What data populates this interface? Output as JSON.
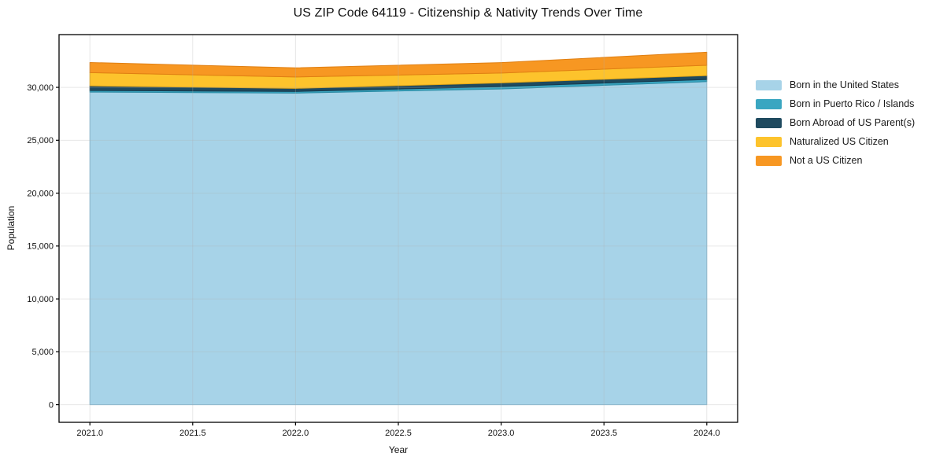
{
  "title": "US ZIP Code 64119 - Citizenship & Nativity Trends Over Time",
  "chart_data": {
    "type": "area",
    "stacked": true,
    "title": "US ZIP Code 64119 - Citizenship & Nativity Trends Over Time",
    "xlabel": "Year",
    "ylabel": "Population",
    "x": [
      2021,
      2022,
      2023,
      2024
    ],
    "series": [
      {
        "name": "Born in the United States",
        "color": "#A7D3E8",
        "edge": "#83BBD6",
        "values": [
          29550,
          29460,
          29850,
          30540
        ]
      },
      {
        "name": "Born in Puerto Rico / Islands",
        "color": "#3AA6C1",
        "edge": "#2B8BA4",
        "values": [
          150,
          150,
          225,
          200
        ]
      },
      {
        "name": "Born Abroad of US Parent(s)",
        "color": "#1F4A5F",
        "edge": "#16374A",
        "values": [
          440,
          295,
          345,
          370
        ]
      },
      {
        "name": "Naturalized US Citizen",
        "color": "#FDC32C",
        "edge": "#E5A817",
        "values": [
          1250,
          1075,
          930,
          980
        ]
      },
      {
        "name": "Not a US Citizen",
        "color": "#F79722",
        "edge": "#E07F12",
        "values": [
          960,
          865,
          990,
          1230
        ]
      }
    ],
    "totals": [
      32350,
      31845,
      32340,
      33320
    ],
    "xlim": [
      2020.85,
      2024.15
    ],
    "ylim": [
      -1666,
      34986
    ],
    "xticks": [
      2021.0,
      2021.5,
      2022.0,
      2022.5,
      2023.0,
      2023.5,
      2024.0
    ],
    "xtick_labels": [
      "2021.0",
      "2021.5",
      "2022.0",
      "2022.5",
      "2023.0",
      "2023.5",
      "2024.0"
    ],
    "yticks": [
      0,
      5000,
      10000,
      15000,
      20000,
      25000,
      30000
    ],
    "ytick_labels": [
      "0",
      "5,000",
      "10,000",
      "15,000",
      "20,000",
      "25,000",
      "30,000"
    ],
    "grid": true,
    "grid_color": "#b0b0b0",
    "spine_color": "#000000",
    "legend_position": "right",
    "legend_frame": false
  }
}
